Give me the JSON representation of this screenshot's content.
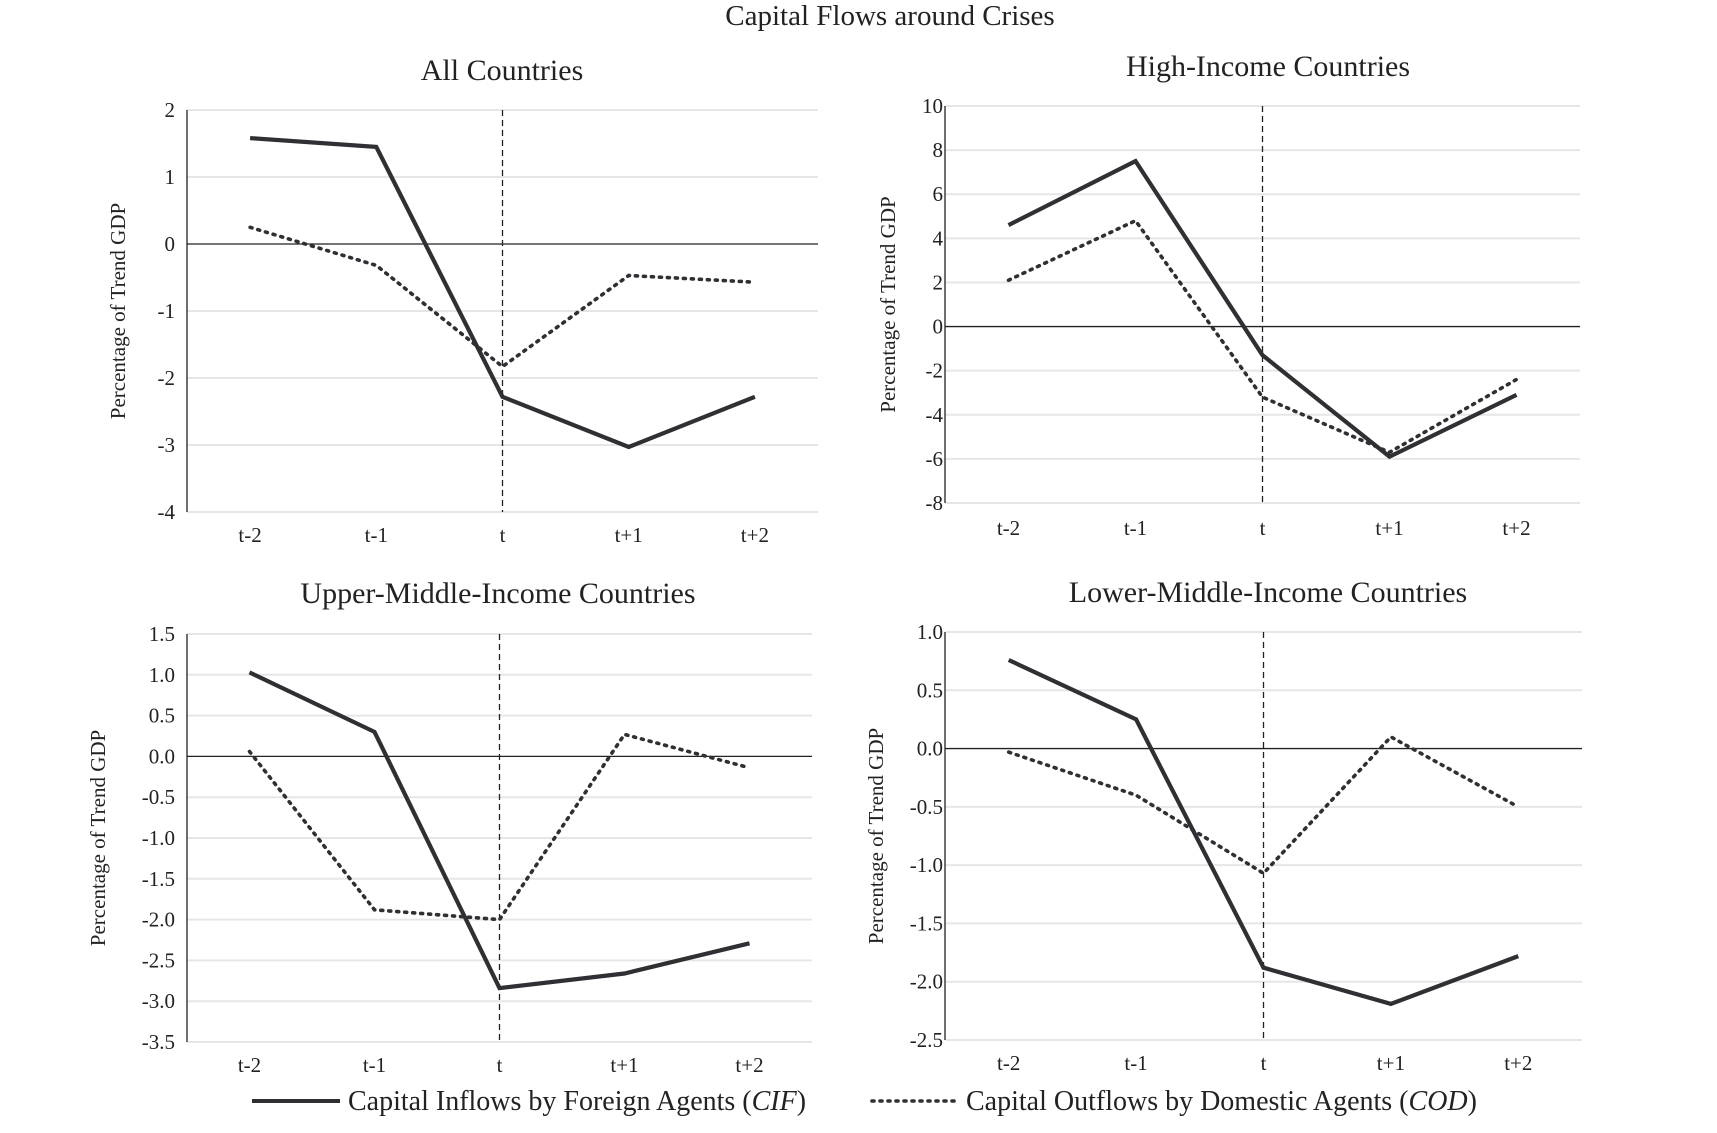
{
  "figure": {
    "title": "Capital Flows around Crises"
  },
  "legend": {
    "items": [
      {
        "key": "CIF",
        "text": "Capital Inflows by Foreign Agents (",
        "abbr": "CIF",
        "suffix": ")",
        "style": "solid"
      },
      {
        "key": "COD",
        "text": "Capital Outflows by Domestic Agents (",
        "abbr": "COD",
        "suffix": ")",
        "style": "dotted"
      }
    ]
  },
  "colors": {
    "line": "#2f2f34",
    "grid": "#e6e6e6",
    "axis": "#222222",
    "text": "#222222"
  },
  "chart_data": [
    {
      "type": "line",
      "title": "All Countries",
      "ylabel": "Percentage of Trend GDP",
      "xlabel": "",
      "categories": [
        "t-2",
        "t-1",
        "t",
        "t+1",
        "t+2"
      ],
      "ylim": [
        -4,
        2
      ],
      "yticks": [
        2,
        1,
        0,
        -1,
        -2,
        -3,
        -4
      ],
      "ytick_labels": [
        "2",
        "1",
        "0",
        "-1",
        "-2",
        "-3",
        "-4"
      ],
      "grid": true,
      "event_marker": "t",
      "series": [
        {
          "key": "CIF",
          "values": [
            1.58,
            1.45,
            -2.28,
            -3.03,
            -2.28
          ]
        },
        {
          "key": "COD",
          "values": [
            0.25,
            -0.32,
            -1.83,
            -0.47,
            -0.57
          ]
        }
      ]
    },
    {
      "type": "line",
      "title": "High-Income Countries",
      "ylabel": "Percentage of Trend GDP",
      "xlabel": "",
      "categories": [
        "t-2",
        "t-1",
        "t",
        "t+1",
        "t+2"
      ],
      "ylim": [
        -8,
        10
      ],
      "yticks": [
        10,
        8,
        6,
        4,
        2,
        0,
        -2,
        -4,
        -6,
        -8
      ],
      "ytick_labels": [
        "10",
        "8",
        "6",
        "4",
        "2",
        "0",
        "-2",
        "-4",
        "-6",
        "-8"
      ],
      "grid": true,
      "event_marker": "t",
      "series": [
        {
          "key": "CIF",
          "values": [
            4.6,
            7.5,
            -1.3,
            -5.9,
            -3.1
          ]
        },
        {
          "key": "COD",
          "values": [
            2.1,
            4.8,
            -3.2,
            -5.7,
            -2.4
          ]
        }
      ]
    },
    {
      "type": "line",
      "title": "Upper-Middle-Income Countries",
      "ylabel": "Percentage of Trend GDP",
      "xlabel": "",
      "categories": [
        "t-2",
        "t-1",
        "t",
        "t+1",
        "t+2"
      ],
      "ylim": [
        -3.5,
        1.5
      ],
      "yticks": [
        1.5,
        1.0,
        0.5,
        0.0,
        -0.5,
        -1.0,
        -1.5,
        -2.0,
        -2.5,
        -3.0,
        -3.5
      ],
      "ytick_labels": [
        "1.5",
        "1.0",
        "0.5",
        "0.0",
        "-0.5",
        "-1.0",
        "-1.5",
        "-2.0",
        "-2.5",
        "-3.0",
        "-3.5"
      ],
      "grid": true,
      "event_marker": "t",
      "series": [
        {
          "key": "CIF",
          "values": [
            1.03,
            0.3,
            -2.84,
            -2.66,
            -2.29
          ]
        },
        {
          "key": "COD",
          "values": [
            0.06,
            -1.88,
            -2.0,
            0.27,
            -0.14
          ]
        }
      ]
    },
    {
      "type": "line",
      "title": "Lower-Middle-Income Countries",
      "ylabel": "Percentage of Trend GDP",
      "xlabel": "",
      "categories": [
        "t-2",
        "t-1",
        "t",
        "t+1",
        "t+2"
      ],
      "ylim": [
        -2.5,
        1.0
      ],
      "yticks": [
        1.0,
        0.5,
        0.0,
        -0.5,
        -1.0,
        -1.5,
        -2.0,
        -2.5
      ],
      "ytick_labels": [
        "1.0",
        "0.5",
        "0.0",
        "-0.5",
        "-1.0",
        "-1.5",
        "-2.0",
        "-2.5"
      ],
      "grid": true,
      "event_marker": "t",
      "series": [
        {
          "key": "CIF",
          "values": [
            0.76,
            0.25,
            -1.88,
            -2.19,
            -1.78
          ]
        },
        {
          "key": "COD",
          "values": [
            -0.03,
            -0.4,
            -1.07,
            0.1,
            -0.5
          ]
        }
      ]
    }
  ]
}
